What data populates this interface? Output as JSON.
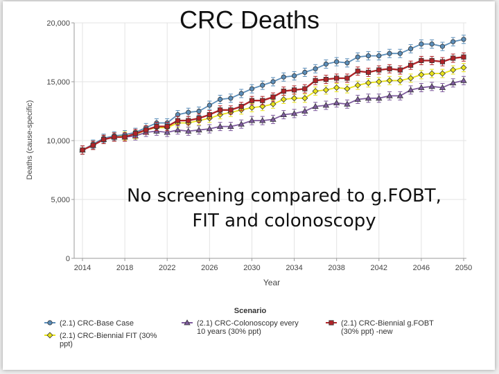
{
  "slide": {
    "title": "CRC Deaths",
    "subtitle_line1": "No screening compared to g.FOBT,",
    "subtitle_line2": "FIT and colonoscopy"
  },
  "chart_data": {
    "type": "line",
    "xlabel": "Year",
    "ylabel": "Deaths (cause-specific)",
    "xlim": [
      2014,
      2050
    ],
    "ylim": [
      0,
      20000
    ],
    "x_ticks": [
      "2014",
      "2018",
      "2022",
      "2026",
      "2030",
      "2034",
      "2038",
      "2042",
      "2046",
      "2050"
    ],
    "y_ticks": [
      "0",
      "5,000",
      "10,000",
      "15,000",
      "20,000"
    ],
    "legend_title": "Scenario",
    "legend_position": "bottom",
    "x": [
      2014,
      2015,
      2016,
      2017,
      2018,
      2019,
      2020,
      2021,
      2022,
      2023,
      2024,
      2025,
      2026,
      2027,
      2028,
      2029,
      2030,
      2031,
      2032,
      2033,
      2034,
      2035,
      2036,
      2037,
      2038,
      2039,
      2040,
      2041,
      2042,
      2043,
      2044,
      2045,
      2046,
      2047,
      2048,
      2049,
      2050
    ],
    "series": [
      {
        "name": "(2.1) CRC-Base Case",
        "legend_lines": [
          "(2.1) CRC-Base Case"
        ],
        "color": "#5b8db8",
        "marker": "circle",
        "values": [
          9200,
          9700,
          10200,
          10400,
          10500,
          10700,
          11100,
          11500,
          11500,
          12200,
          12400,
          12500,
          13000,
          13500,
          13600,
          14000,
          14400,
          14700,
          15000,
          15400,
          15500,
          15800,
          16100,
          16500,
          16700,
          16600,
          17100,
          17200,
          17200,
          17400,
          17400,
          17800,
          18200,
          18200,
          18000,
          18400,
          18600
        ]
      },
      {
        "name": "(2.1) CRC-Biennial FIT (30% ppt)",
        "legend_lines": [
          "(2.1) CRC-Biennial FIT (30%",
          "ppt)"
        ],
        "color": "#e8e21a",
        "marker": "diamond",
        "values": [
          9200,
          9600,
          10100,
          10300,
          10400,
          10500,
          10900,
          11100,
          11100,
          11500,
          11500,
          11700,
          11900,
          12200,
          12400,
          12600,
          12800,
          12900,
          13100,
          13500,
          13600,
          13600,
          14200,
          14300,
          14500,
          14400,
          14700,
          14900,
          15000,
          15100,
          15100,
          15300,
          15600,
          15700,
          15700,
          16000,
          16200
        ]
      },
      {
        "name": "(2.1) CRC-Colonoscopy every 10 years (30% ppt)",
        "legend_lines": [
          "(2.1) CRC-Colonoscopy every",
          "10 years (30% ppt)"
        ],
        "color": "#7d5a9c",
        "marker": "triangle",
        "values": [
          9200,
          9600,
          10100,
          10300,
          10300,
          10400,
          10700,
          10800,
          10700,
          10900,
          10800,
          10900,
          11000,
          11200,
          11200,
          11400,
          11700,
          11700,
          11800,
          12200,
          12300,
          12500,
          12900,
          13000,
          13200,
          13100,
          13500,
          13600,
          13600,
          13800,
          13800,
          14300,
          14500,
          14600,
          14500,
          14900,
          15100
        ]
      },
      {
        "name": "(2.1) CRC-Biennial g.FOBT (30% ppt) -new",
        "legend_lines": [
          "(2.1) CRC-Biennial g.FOBT",
          "(30% ppt) -new"
        ],
        "color": "#b02428",
        "marker": "square",
        "values": [
          9200,
          9600,
          10100,
          10300,
          10300,
          10600,
          10900,
          11200,
          11200,
          11700,
          11700,
          11900,
          12200,
          12600,
          12600,
          12900,
          13400,
          13400,
          13700,
          14200,
          14300,
          14400,
          15100,
          15200,
          15300,
          15300,
          15900,
          15800,
          16000,
          16100,
          16000,
          16400,
          16800,
          16800,
          16700,
          17000,
          17100
        ]
      }
    ]
  }
}
